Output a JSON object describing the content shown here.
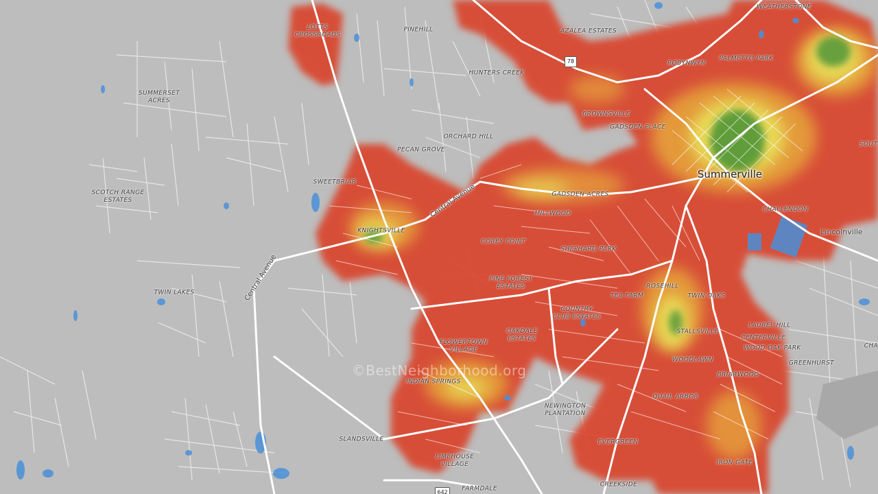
{
  "map": {
    "city_label": "Summerville",
    "town_labels": {
      "lincolnville": "Lincolnville"
    },
    "road_labels": {
      "central_avenue_west": "Central Avenue",
      "central_avenue_east": "Central Avenue"
    },
    "route_shields": {
      "us78": "78",
      "sc642": "642"
    },
    "watermark": "©BestNeighborhood.org",
    "colors": {
      "background": "#bdbdbd",
      "roads": "#ffffff",
      "water": "#4a90d9",
      "heat_high": "#d9442e",
      "heat_mid": "#e6a23c",
      "heat_low": "#e8e05a",
      "heat_best": "#5a9a3a"
    },
    "neighborhoods": [
      {
        "id": "lotts-crossroads",
        "text": "LOTTS\nCROSSROADS"
      },
      {
        "id": "pinehill",
        "text": "PINEHILL"
      },
      {
        "id": "azalea-estates",
        "text": "AZALEA ESTATES"
      },
      {
        "id": "weatherstone",
        "text": "WEATHERSTONE"
      },
      {
        "id": "hunters-creek",
        "text": "HUNTERS CREEK"
      },
      {
        "id": "robynwyn",
        "text": "ROBYNWYN"
      },
      {
        "id": "palmetto-park",
        "text": "PALMETTO PARK"
      },
      {
        "id": "summerset-acres",
        "text": "SUMMERSET\nACRES"
      },
      {
        "id": "brownsville",
        "text": "BROWNSVILLE"
      },
      {
        "id": "gadsden-place",
        "text": "GADSDEN PLACE"
      },
      {
        "id": "orchard-hill",
        "text": "ORCHARD HILL"
      },
      {
        "id": "pecan-grove",
        "text": "PECAN GROVE"
      },
      {
        "id": "sweetbriar",
        "text": "SWEETBRIAR"
      },
      {
        "id": "scotch-range-estates",
        "text": "SCOTCH RANGE\nESTATES"
      },
      {
        "id": "gadsden-acres",
        "text": "GADSDEN ACRES"
      },
      {
        "id": "knightsville",
        "text": "KNIGHTSVILLE"
      },
      {
        "id": "millwood",
        "text": "MILLWOOD"
      },
      {
        "id": "challendon",
        "text": "CHALLENDON"
      },
      {
        "id": "corey-point",
        "text": "COREY POINT"
      },
      {
        "id": "shephard-park",
        "text": "SHEPHARD PARK"
      },
      {
        "id": "pine-forest-estates",
        "text": "PINE FOREST\nESTATES"
      },
      {
        "id": "rosehill",
        "text": "ROSEHILL"
      },
      {
        "id": "twin-lakes",
        "text": "TWIN LAKES"
      },
      {
        "id": "tea-farm",
        "text": "TEA FARM"
      },
      {
        "id": "twin-oaks",
        "text": "TWIN OAKS"
      },
      {
        "id": "country-club-estates",
        "text": "COUNTRY\nCLUB ESTATES"
      },
      {
        "id": "laurel-hill",
        "text": "LAUREL HILL"
      },
      {
        "id": "stallsville",
        "text": "STALLSVILLE"
      },
      {
        "id": "centerville",
        "text": "CENTERVILLE"
      },
      {
        "id": "oakdale-estates",
        "text": "OAKDALE\nESTATES"
      },
      {
        "id": "flowertown-village",
        "text": "FLOWERTOWN\nVILLAGE"
      },
      {
        "id": "wood-oak-park",
        "text": "WOOD OAK PARK"
      },
      {
        "id": "greenhurst",
        "text": "GREENHURST"
      },
      {
        "id": "woodlawn",
        "text": "WOODLAWN"
      },
      {
        "id": "indian-springs",
        "text": "INDIAN SPRINGS"
      },
      {
        "id": "briarwood",
        "text": "BRIARWOOD"
      },
      {
        "id": "quail-arbor",
        "text": "QUAIL ARBOR"
      },
      {
        "id": "newington-plantation",
        "text": "NEWINGTON\nPLANTATION"
      },
      {
        "id": "slandsville",
        "text": "SLANDSVILLE"
      },
      {
        "id": "evergreen",
        "text": "EVERGREEN"
      },
      {
        "id": "limehouse-village",
        "text": "LIMEHOUSE\nVILLAGE"
      },
      {
        "id": "iron-gate",
        "text": "IRON GATE"
      },
      {
        "id": "farmdale",
        "text": "FARMDALE"
      },
      {
        "id": "creekside",
        "text": "CREEKSIDE"
      },
      {
        "id": "south-partial",
        "text": "SOUT"
      },
      {
        "id": "cha-partial",
        "text": "CHA"
      }
    ]
  }
}
